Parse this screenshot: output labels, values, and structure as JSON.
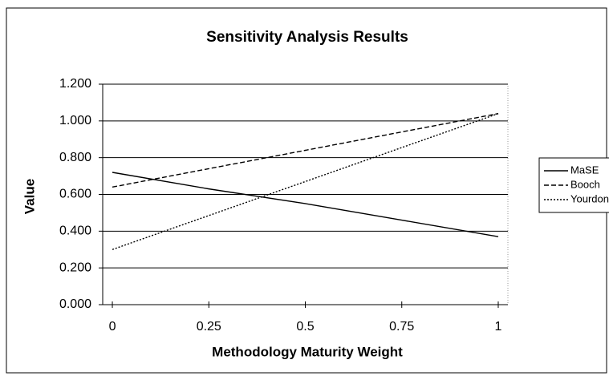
{
  "chart_data": {
    "type": "line",
    "title": "Sensitivity Analysis Results",
    "x_label": "Methodology Maturity Weight",
    "y_label": "Value",
    "x": [
      0,
      0.25,
      0.5,
      0.75,
      1
    ],
    "series": [
      {
        "name": "MaSE",
        "color": "#000000",
        "dash": "solid",
        "values": [
          0.72,
          0.63,
          0.55,
          0.46,
          0.37
        ]
      },
      {
        "name": "Booch",
        "color": "#000000",
        "dash": "dashed",
        "values": [
          0.64,
          0.74,
          0.84,
          0.94,
          1.04
        ]
      },
      {
        "name": "Yourdon",
        "color": "#000000",
        "dash": "dotted",
        "values": [
          0.3,
          0.485,
          0.67,
          0.855,
          1.04
        ]
      }
    ],
    "xlim": [
      -0.025,
      1.025
    ],
    "xticks": [
      0,
      0.25,
      0.5,
      0.75,
      1
    ],
    "ylim": [
      0,
      1.2
    ],
    "yticks": [
      {
        "value": 0,
        "label": "0.000"
      },
      {
        "value": 0.2,
        "label": "0.200"
      },
      {
        "value": 0.4,
        "label": "0.400"
      },
      {
        "value": 0.6,
        "label": "0.600"
      },
      {
        "value": 0.8,
        "label": "0.800"
      },
      {
        "value": 1.0,
        "label": "1.000"
      },
      {
        "value": 1.2,
        "label": "1.200"
      }
    ],
    "grid": true,
    "legend": "right"
  }
}
